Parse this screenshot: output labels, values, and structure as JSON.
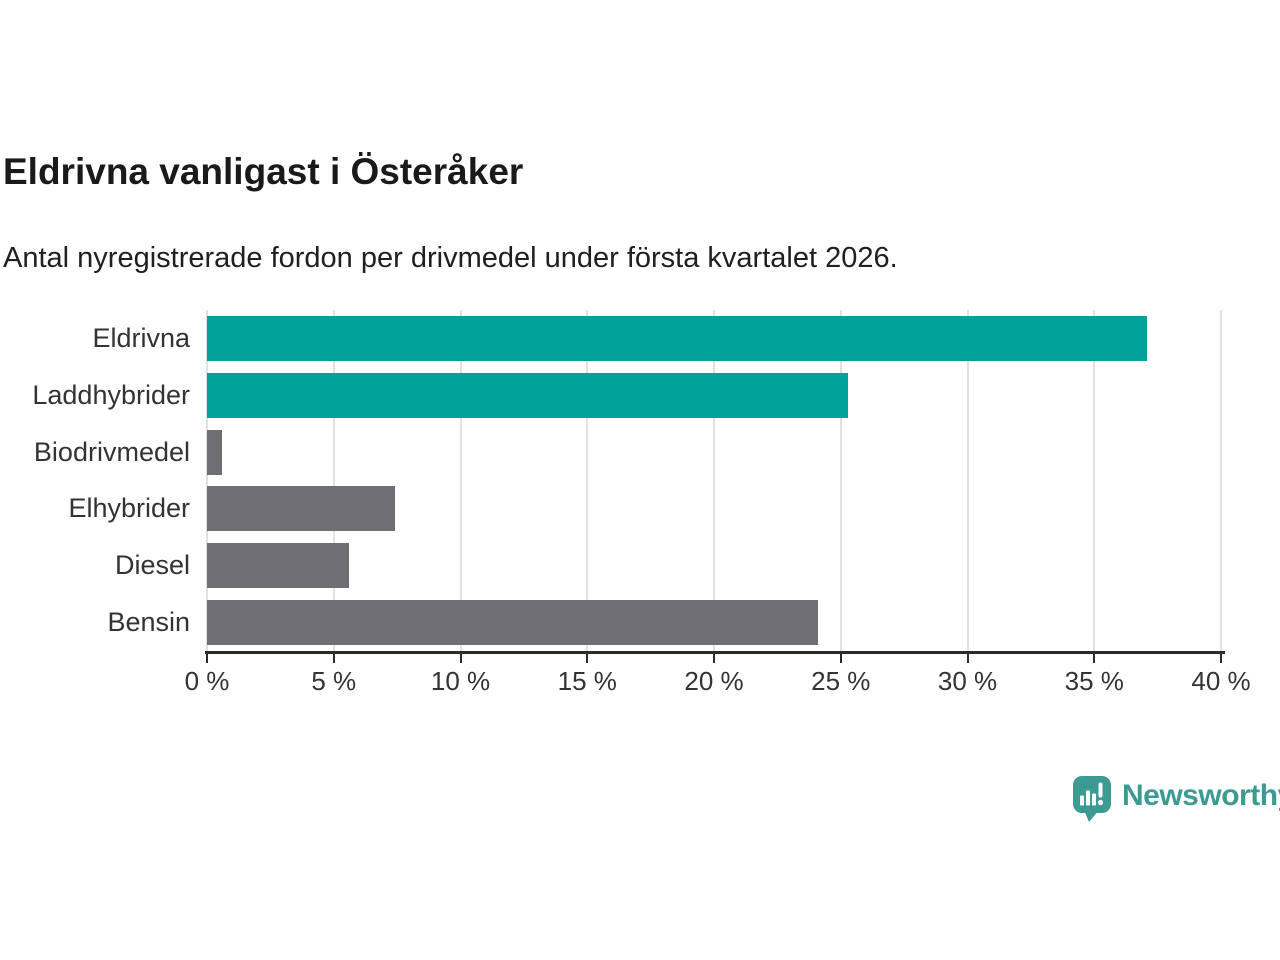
{
  "title": "Eldrivna vanligast i Österåker",
  "subtitle": "Antal nyregistrerade fordon per drivmedel under första kvartalet 2026.",
  "chart_data": {
    "type": "bar",
    "orientation": "horizontal",
    "title": "Eldrivna vanligast i Österåker",
    "subtitle": "Antal nyregistrerade fordon per drivmedel under första kvartalet 2026.",
    "categories": [
      "Eldrivna",
      "Laddhybrider",
      "Biodrivmedel",
      "Elhybrider",
      "Diesel",
      "Bensin"
    ],
    "values": [
      37.1,
      25.3,
      0.6,
      7.4,
      5.6,
      24.1
    ],
    "unit": "%",
    "bar_colors": [
      "#00A29A",
      "#00A29A",
      "#6E6E73",
      "#6E6E73",
      "#6E6E73",
      "#6E6E73"
    ],
    "highlight_color": "#00A29A",
    "default_color": "#6E6E73",
    "xlim": [
      0,
      40
    ],
    "x_ticks": [
      0,
      5,
      10,
      15,
      20,
      25,
      30,
      35,
      40
    ],
    "x_tick_labels": [
      "0 %",
      "5 %",
      "10 %",
      "15 %",
      "20 %",
      "25 %",
      "30 %",
      "35 %",
      "40 %"
    ],
    "grid": true,
    "gridline_color": "#E1E1E1",
    "axis_color": "#2B2B2B",
    "legend_position": "none"
  },
  "branding": {
    "logo_text": "Newsworthy",
    "logo_color": "#3D9A93",
    "logo_icon": "bar-chart-speech-bubble"
  }
}
